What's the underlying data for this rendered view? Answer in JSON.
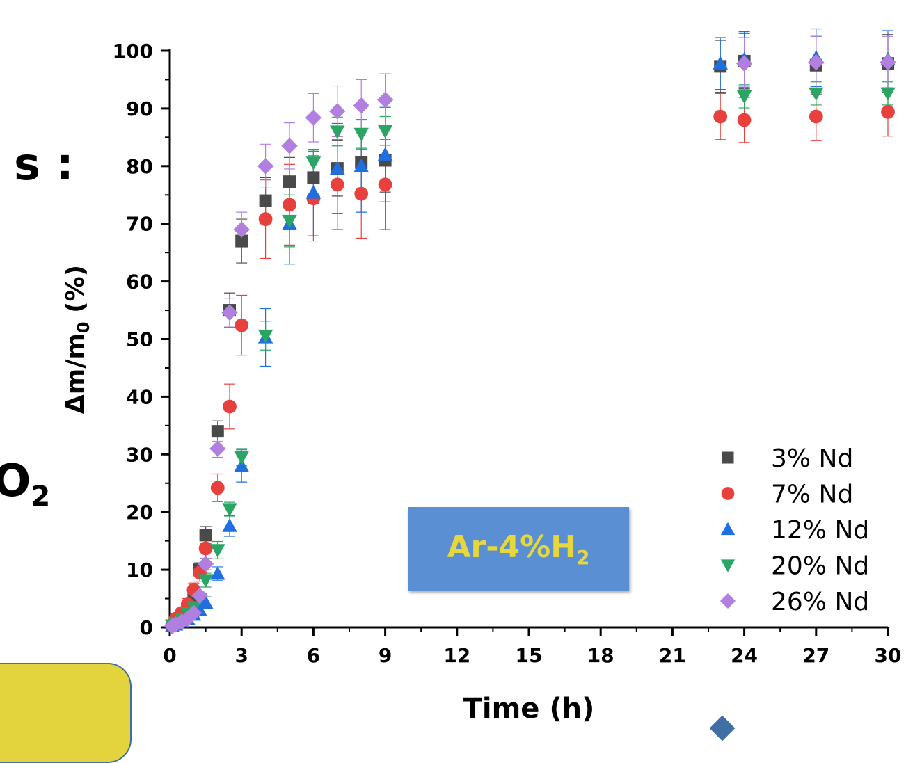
{
  "fragments": {
    "left_top": "s :",
    "left_mid": "O",
    "left_mid_sub": "2"
  },
  "annotation": {
    "main": "Ar-4%H",
    "sub": "2"
  },
  "colors": {
    "3% Nd": "#4a4a4a",
    "7% Nd": "#e8403d",
    "12% Nd": "#1f6fe0",
    "20% Nd": "#2aa564",
    "26% Nd": "#b07fe0"
  },
  "chart_data": {
    "type": "scatter",
    "xlabel": "Time (h)",
    "ylabel": "Δm/m",
    "ylabel_sub": "0",
    "ylabel_unit": " (%)",
    "xlim": [
      0,
      30
    ],
    "ylim": [
      0,
      100
    ],
    "x_ticks": [
      0,
      3,
      6,
      9,
      12,
      15,
      18,
      21,
      24,
      27,
      30
    ],
    "y_ticks": [
      0,
      10,
      20,
      30,
      40,
      50,
      60,
      70,
      80,
      90,
      100
    ],
    "legend_position": "bottom-right",
    "series": [
      {
        "name": "3% Nd",
        "marker": "square",
        "x": [
          0.1,
          0.25,
          0.5,
          0.75,
          1,
          1.25,
          1.5,
          2,
          2.5,
          3,
          4,
          5,
          6,
          7,
          8,
          9,
          23,
          24,
          27,
          30
        ],
        "y": [
          0.3,
          0.8,
          2,
          3.5,
          5,
          10,
          16,
          34,
          55,
          67,
          74,
          77.3,
          78,
          79.6,
          80.6,
          81,
          97.3,
          98.2,
          97.5,
          97.8
        ],
        "err": [
          0.3,
          0.5,
          0.8,
          1,
          1,
          1.2,
          1.5,
          1.8,
          3,
          3.8,
          4,
          4.2,
          4.5,
          4.8,
          5,
          5.5,
          4.5,
          4.8,
          5,
          5
        ]
      },
      {
        "name": "7% Nd",
        "marker": "circle",
        "x": [
          0.1,
          0.25,
          0.5,
          0.75,
          1,
          1.25,
          1.5,
          2,
          2.5,
          3,
          4,
          5,
          6,
          7,
          8,
          9,
          23,
          24,
          27,
          30
        ],
        "y": [
          0.5,
          1.5,
          2.5,
          4,
          6.5,
          9.5,
          13.7,
          24.2,
          38.3,
          52.4,
          70.8,
          73.3,
          74.4,
          76.8,
          75.2,
          76.8,
          88.6,
          88,
          88.6,
          89.4
        ],
        "err": [
          0.3,
          0.5,
          0.8,
          1,
          1.2,
          1.5,
          1.8,
          2.4,
          3.9,
          5.2,
          6.8,
          7,
          7.4,
          7.8,
          7.7,
          7.8,
          4,
          3.9,
          4.2,
          4.2
        ]
      },
      {
        "name": "12% Nd",
        "marker": "triangle-up",
        "x": [
          0.1,
          0.25,
          0.5,
          0.75,
          1,
          1.25,
          1.5,
          2,
          2.5,
          3,
          4,
          5,
          6,
          7,
          8,
          9,
          23,
          24,
          27,
          30
        ],
        "y": [
          0.2,
          0.5,
          1,
          1.5,
          2.2,
          3,
          4.3,
          9.3,
          17.6,
          28,
          50.3,
          70,
          75.4,
          79.6,
          80,
          82,
          97.8,
          98.5,
          98.8,
          98.5
        ],
        "err": [
          0.2,
          0.3,
          0.5,
          0.6,
          0.8,
          1,
          1,
          1.2,
          1.8,
          2.8,
          5,
          7,
          7.5,
          7.8,
          8,
          8.2,
          4.5,
          4.8,
          5,
          5
        ]
      },
      {
        "name": "20% Nd",
        "marker": "triangle-down",
        "x": [
          0.1,
          0.25,
          0.5,
          0.75,
          1,
          1.25,
          1.5,
          2,
          2.5,
          3,
          4,
          5,
          6,
          7,
          8,
          9,
          24,
          27,
          30
        ],
        "y": [
          0.3,
          0.8,
          1.5,
          2.5,
          3.5,
          5,
          8.2,
          13.4,
          20.5,
          29.5,
          50.6,
          70.5,
          80.6,
          86,
          85.6,
          86.1,
          92.1,
          92.6,
          92.6
        ],
        "err": [
          0.2,
          0.4,
          0.6,
          0.8,
          1,
          1,
          1.2,
          1.5,
          1.2,
          1.5,
          2.5,
          4.5,
          2,
          2.5,
          2.5,
          2.5,
          2,
          2,
          2
        ]
      },
      {
        "name": "26% Nd",
        "marker": "diamond",
        "x": [
          0.1,
          0.25,
          0.5,
          0.75,
          1,
          1.25,
          1.5,
          2,
          2.5,
          3,
          4,
          5,
          6,
          7,
          8,
          9,
          24,
          27,
          30
        ],
        "y": [
          0.2,
          0.5,
          1,
          1.5,
          2.5,
          5.5,
          11,
          31,
          54.6,
          69,
          80,
          83.5,
          88.4,
          89.5,
          90.5,
          91.5,
          97.8,
          98,
          98
        ],
        "err": [
          0.2,
          0.3,
          0.4,
          0.5,
          0.6,
          0.8,
          1,
          1.5,
          2.5,
          3,
          3.8,
          4,
          4.2,
          4.4,
          4.5,
          4.5,
          4.5,
          4.5,
          4.5
        ]
      }
    ]
  }
}
